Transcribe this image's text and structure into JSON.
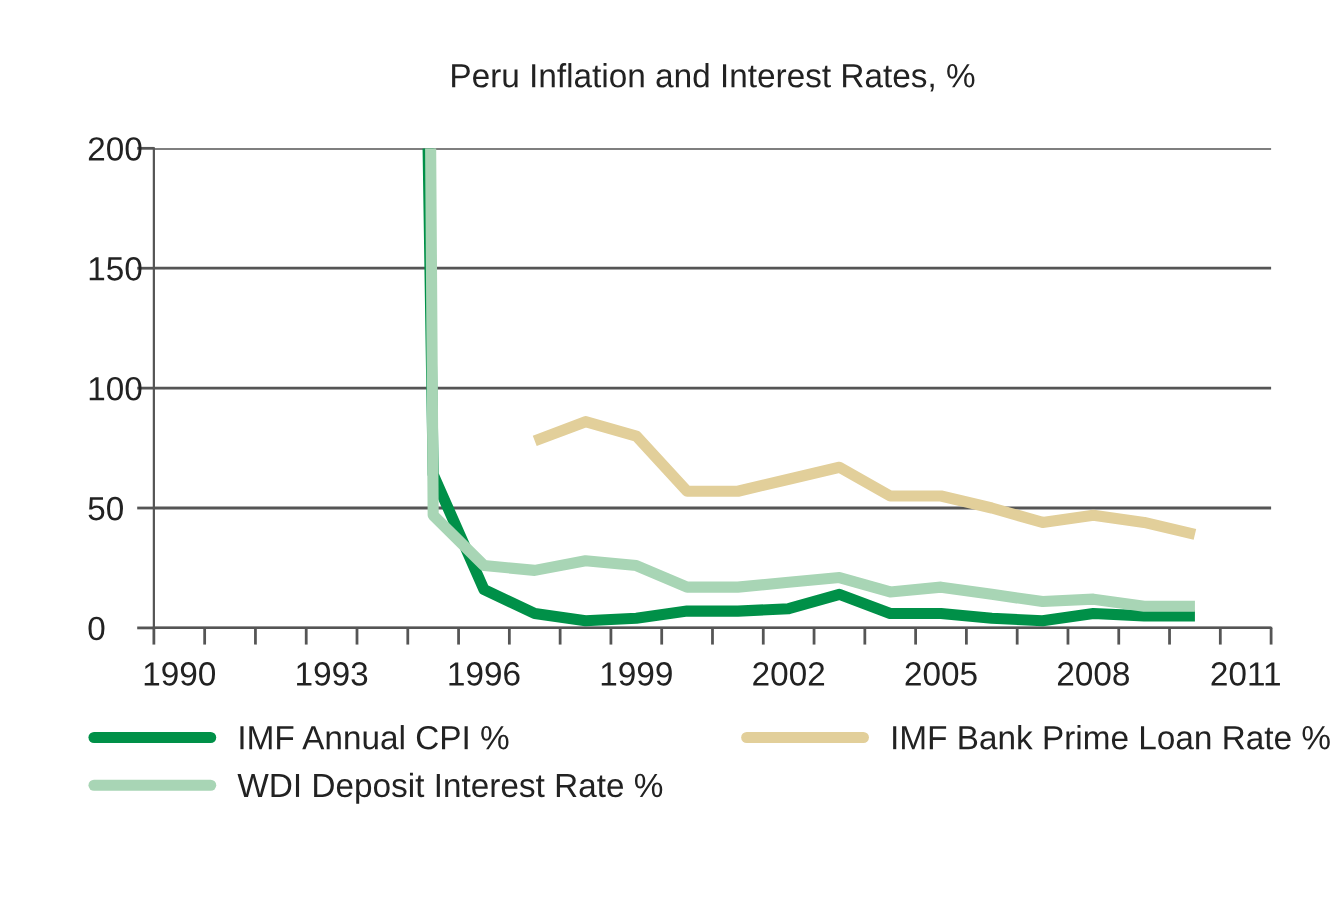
{
  "chart_data": {
    "type": "line",
    "title": "Peru Inflation and Interest Rates, %",
    "series": [
      {
        "name": "IMF Annual CPI %",
        "color": "#009048",
        "x": [
          1994.9,
          1995.0,
          1996,
          1997,
          1998,
          1999,
          2000,
          2001,
          2002,
          2003,
          2004,
          2005,
          2006,
          2007,
          2008,
          2009,
          2010
        ],
        "values": [
          200,
          64,
          16,
          6,
          3,
          4,
          7,
          7,
          8,
          14,
          6,
          6,
          4,
          3,
          6,
          5,
          5
        ]
      },
      {
        "name": "IMF Bank Prime Loan Rate %",
        "color": "#e2cf9a",
        "x": [
          1997,
          1998,
          1999,
          2000,
          2001,
          2002,
          2003,
          2004,
          2005,
          2006,
          2007,
          2008,
          2009,
          2010
        ],
        "values": [
          78,
          86,
          80,
          57,
          57,
          62,
          67,
          55,
          55,
          50,
          44,
          47,
          44,
          39
        ]
      },
      {
        "name": "WDI Deposit Interest Rate %",
        "color": "#a8d5b5",
        "x": [
          1994.95,
          1995.0,
          1996,
          1997,
          1998,
          1999,
          2000,
          2001,
          2002,
          2003,
          2004,
          2005,
          2006,
          2007,
          2008,
          2009,
          2010
        ],
        "values": [
          200,
          47,
          26,
          24,
          28,
          26,
          17,
          17,
          19,
          21,
          15,
          17,
          14,
          11,
          12,
          9,
          9
        ]
      }
    ],
    "xlim": [
      1989.5,
      2011.5
    ],
    "xticks": [
      {
        "value": 1990,
        "label": "1990"
      },
      {
        "value": 1993,
        "label": "1993"
      },
      {
        "value": 1996,
        "label": "1996"
      },
      {
        "value": 1999,
        "label": "1999"
      },
      {
        "value": 2002,
        "label": "2002"
      },
      {
        "value": 2005,
        "label": "2005"
      },
      {
        "value": 2008,
        "label": "2008"
      },
      {
        "value": 2011,
        "label": "2011"
      },
      {
        "value": 1989.5,
        "label": null
      },
      {
        "value": 1990.5,
        "label": null
      },
      {
        "value": 1991.5,
        "label": null
      },
      {
        "value": 1992.5,
        "label": null
      },
      {
        "value": 1993.5,
        "label": null
      },
      {
        "value": 1994.5,
        "label": null
      },
      {
        "value": 1995.5,
        "label": null
      },
      {
        "value": 1996.5,
        "label": null
      },
      {
        "value": 1997.5,
        "label": null
      },
      {
        "value": 1998.5,
        "label": null
      },
      {
        "value": 1999.5,
        "label": null
      },
      {
        "value": 2000.5,
        "label": null
      },
      {
        "value": 2001.5,
        "label": null
      },
      {
        "value": 2002.5,
        "label": null
      },
      {
        "value": 2003.5,
        "label": null
      },
      {
        "value": 2004.5,
        "label": null
      },
      {
        "value": 2005.5,
        "label": null
      },
      {
        "value": 2006.5,
        "label": null
      },
      {
        "value": 2007.5,
        "label": null
      },
      {
        "value": 2008.5,
        "label": null
      },
      {
        "value": 2009.5,
        "label": null
      },
      {
        "value": 2010.5,
        "label": null
      },
      {
        "value": 2011.5,
        "label": null
      }
    ],
    "ylim": [
      0,
      200
    ],
    "yticks": [
      0,
      50,
      100,
      150,
      200
    ],
    "grid": "y",
    "legend": "bottom",
    "line_style": "solid",
    "marker": "none"
  }
}
